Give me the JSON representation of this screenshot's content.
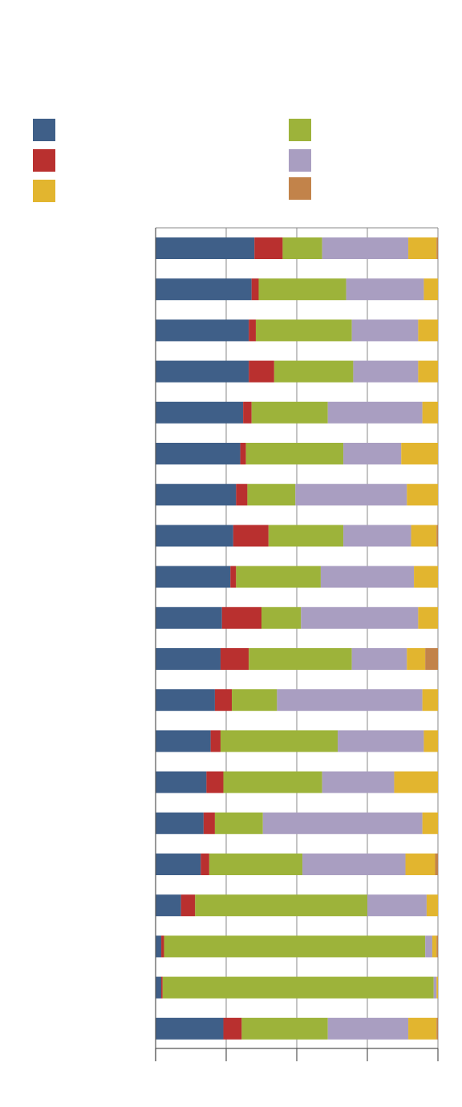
{
  "chart_data": {
    "type": "bar",
    "orientation": "horizontal",
    "stacked": true,
    "normalized": true,
    "title": "",
    "xlabel": "",
    "ylabel": "",
    "xlim": [
      0,
      1
    ],
    "xticks": [
      0,
      0.25,
      0.5,
      0.75,
      1
    ],
    "grid": true,
    "legend_position": "top",
    "categories": [
      "",
      "",
      "",
      "",
      "",
      "",
      "",
      "",
      "",
      "",
      "",
      "",
      "",
      "",
      "",
      "",
      "",
      "",
      "",
      ""
    ],
    "series": [
      {
        "color": "#3F5F88",
        "values": [
          0.35,
          0.34,
          0.33,
          0.33,
          0.31,
          0.3,
          0.285,
          0.275,
          0.265,
          0.235,
          0.23,
          0.21,
          0.195,
          0.18,
          0.17,
          0.16,
          0.09,
          0.02,
          0.02,
          0.24
        ]
      },
      {
        "color": "#B9302F",
        "values": [
          0.1,
          0.025,
          0.025,
          0.09,
          0.03,
          0.02,
          0.04,
          0.125,
          0.02,
          0.14,
          0.1,
          0.06,
          0.035,
          0.06,
          0.04,
          0.03,
          0.05,
          0.01,
          0.005,
          0.065
        ]
      },
      {
        "color": "#9DB33A",
        "values": [
          0.14,
          0.31,
          0.34,
          0.28,
          0.27,
          0.345,
          0.17,
          0.265,
          0.3,
          0.14,
          0.365,
          0.16,
          0.415,
          0.35,
          0.17,
          0.33,
          0.61,
          0.925,
          0.96,
          0.305
        ]
      },
      {
        "color": "#A99EC1",
        "values": [
          0.305,
          0.275,
          0.235,
          0.23,
          0.335,
          0.205,
          0.395,
          0.24,
          0.33,
          0.415,
          0.195,
          0.515,
          0.305,
          0.255,
          0.565,
          0.365,
          0.21,
          0.025,
          0.01,
          0.285
        ]
      },
      {
        "color": "#E2B52F",
        "values": [
          0.1,
          0.05,
          0.07,
          0.07,
          0.06,
          0.13,
          0.11,
          0.09,
          0.085,
          0.07,
          0.065,
          0.055,
          0.05,
          0.155,
          0.055,
          0.105,
          0.04,
          0.015,
          0.005,
          0.1
        ]
      },
      {
        "color": "#C2834A",
        "values": [
          0.005,
          0.0,
          0.0,
          0.0,
          0.0,
          0.0,
          0.0,
          0.005,
          0.0,
          0.0,
          0.045,
          0.0,
          0.0,
          0.0,
          0.0,
          0.01,
          0.0,
          0.005,
          0.0,
          0.005
        ]
      }
    ],
    "legend": [
      {
        "color": "#3F5F88",
        "label": ""
      },
      {
        "color": "#B9302F",
        "label": ""
      },
      {
        "color": "#E2B52F",
        "label": ""
      },
      {
        "color": "#9DB33A",
        "label": ""
      },
      {
        "color": "#A99EC1",
        "label": ""
      },
      {
        "color": "#C2834A",
        "label": ""
      }
    ]
  }
}
